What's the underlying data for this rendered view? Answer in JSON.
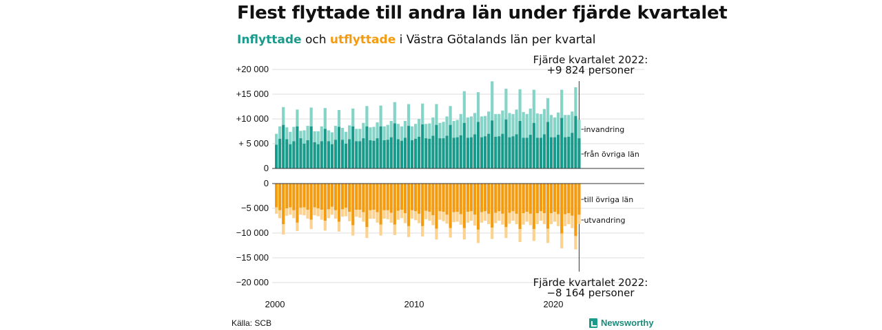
{
  "title": "Flest flyttade till andra län under fjärde kvartalet",
  "subtitle": {
    "in": "Inflyttade",
    "mid": " och ",
    "out": "utflyttade",
    "rest": " i Västra Götalands län per kvartal"
  },
  "source": "Källa: SCB",
  "logo": "Newsworthy",
  "colors": {
    "in_dark": "#1a9a8a",
    "in_light": "#86d4c7",
    "out_dark": "#f39c12",
    "out_light": "#fbd28f"
  },
  "chart_data": {
    "type": "bar",
    "start_year": 2000,
    "quarters_per_year": 4,
    "x_ticks": [
      "2000",
      "2010",
      "2020"
    ],
    "y_top_ticks": [
      "+20 000",
      "+15 000",
      "+10 000",
      "+ 5 000",
      "0"
    ],
    "y_bottom_ticks": [
      "0",
      "−5 000",
      "−10 000",
      "−15 000",
      "−20 000"
    ],
    "y_top_range": [
      0,
      20000
    ],
    "y_bottom_range": [
      -20000,
      0
    ],
    "series_labels": {
      "in_light": "invandring",
      "in_dark": "från övriga län",
      "out_dark": "till övriga län",
      "out_light": "utvandring"
    },
    "annotation_top": {
      "line1": "Fjärde kvartalet 2022:",
      "line2": "+9 824 personer"
    },
    "annotation_bottom": {
      "line1": "Fjärde kvartalet 2022:",
      "line2": "−8 164 personer"
    },
    "inflyttade_totals": [
      7000,
      8500,
      12400,
      8300,
      7400,
      8400,
      11900,
      7600,
      7700,
      8600,
      12300,
      7500,
      7500,
      8500,
      12200,
      7700,
      7300,
      8600,
      11800,
      8200,
      7400,
      8700,
      12100,
      8000,
      8000,
      9200,
      12600,
      8300,
      8400,
      9300,
      12700,
      8500,
      8800,
      9600,
      13400,
      9000,
      8500,
      9600,
      13000,
      8500,
      9000,
      10000,
      13100,
      9000,
      9100,
      10300,
      13000,
      9200,
      9400,
      10500,
      12600,
      9600,
      9800,
      11000,
      15600,
      10300,
      10500,
      11200,
      15400,
      10500,
      10600,
      11500,
      17600,
      11000,
      11000,
      11700,
      16100,
      11200,
      11000,
      11900,
      16000,
      11400,
      11000,
      12100,
      15900,
      11100,
      11000,
      12000,
      14200,
      10800,
      10300,
      11300,
      15900,
      10800,
      10800,
      11500,
      16400,
      9824
    ],
    "inflyttade_fran_lan": [
      4800,
      6000,
      8800,
      5900,
      4900,
      5500,
      8500,
      6100,
      5000,
      5700,
      8500,
      5300,
      4900,
      5500,
      8000,
      5500,
      4900,
      5800,
      8400,
      5800,
      5000,
      5900,
      8500,
      5500,
      5500,
      6100,
      8500,
      5700,
      5600,
      6100,
      8500,
      5700,
      5800,
      6300,
      9100,
      5900,
      5600,
      6200,
      8600,
      5700,
      6000,
      6400,
      8900,
      6100,
      6000,
      6600,
      8800,
      6100,
      6100,
      6600,
      8800,
      6200,
      6300,
      6700,
      9200,
      6200,
      6300,
      6900,
      9400,
      6300,
      6500,
      7000,
      9700,
      6400,
      6500,
      7000,
      9900,
      6300,
      6500,
      6900,
      9600,
      6200,
      6200,
      6800,
      9200,
      6200,
      6200,
      6900,
      9400,
      6300,
      6300,
      6800,
      10200,
      6300,
      6400,
      7200,
      10600,
      6100
    ],
    "utflyttade_totals": [
      -6100,
      -7000,
      -10300,
      -6500,
      -6300,
      -7000,
      -9600,
      -6300,
      -6400,
      -7100,
      -9200,
      -6400,
      -6600,
      -7300,
      -9500,
      -7000,
      -6300,
      -7100,
      -9700,
      -6700,
      -6600,
      -7600,
      -10500,
      -6700,
      -6900,
      -7700,
      -11000,
      -7100,
      -7100,
      -7900,
      -10500,
      -7100,
      -7200,
      -7900,
      -10400,
      -7300,
      -7000,
      -8000,
      -10800,
      -7100,
      -7400,
      -8000,
      -10700,
      -7200,
      -7500,
      -8400,
      -11300,
      -7300,
      -7600,
      -8100,
      -10900,
      -7800,
      -7700,
      -8300,
      -11300,
      -7900,
      -7500,
      -8500,
      -12000,
      -7900,
      -7500,
      -8200,
      -11200,
      -8000,
      -7500,
      -8300,
      -11000,
      -8100,
      -7500,
      -8200,
      -11800,
      -8300,
      -7700,
      -8400,
      -11600,
      -8200,
      -7500,
      -8200,
      -12000,
      -8200,
      -7700,
      -8600,
      -13100,
      -8600,
      -8200,
      -9000,
      -13300,
      -8164
    ],
    "utflyttade_till_lan": [
      -4800,
      -5400,
      -8200,
      -5000,
      -4800,
      -5400,
      -7900,
      -4900,
      -4800,
      -5300,
      -7300,
      -4800,
      -5000,
      -5300,
      -7500,
      -5200,
      -4700,
      -5400,
      -7700,
      -5200,
      -4900,
      -5700,
      -8400,
      -5300,
      -5300,
      -5800,
      -8800,
      -5400,
      -5300,
      -5800,
      -8300,
      -5400,
      -5400,
      -5900,
      -8300,
      -5500,
      -5300,
      -6000,
      -8600,
      -5400,
      -5600,
      -6100,
      -8600,
      -5500,
      -5700,
      -6400,
      -9100,
      -5600,
      -5700,
      -6300,
      -9000,
      -5800,
      -5700,
      -6200,
      -9000,
      -5700,
      -5600,
      -6300,
      -9300,
      -5800,
      -5600,
      -6100,
      -8900,
      -5900,
      -5600,
      -6100,
      -8800,
      -5900,
      -5600,
      -6100,
      -9200,
      -6000,
      -5700,
      -6100,
      -9200,
      -6000,
      -5600,
      -6000,
      -9100,
      -6000,
      -5700,
      -6200,
      -10100,
      -6200,
      -6000,
      -6500,
      -10600,
      -6300
    ]
  }
}
